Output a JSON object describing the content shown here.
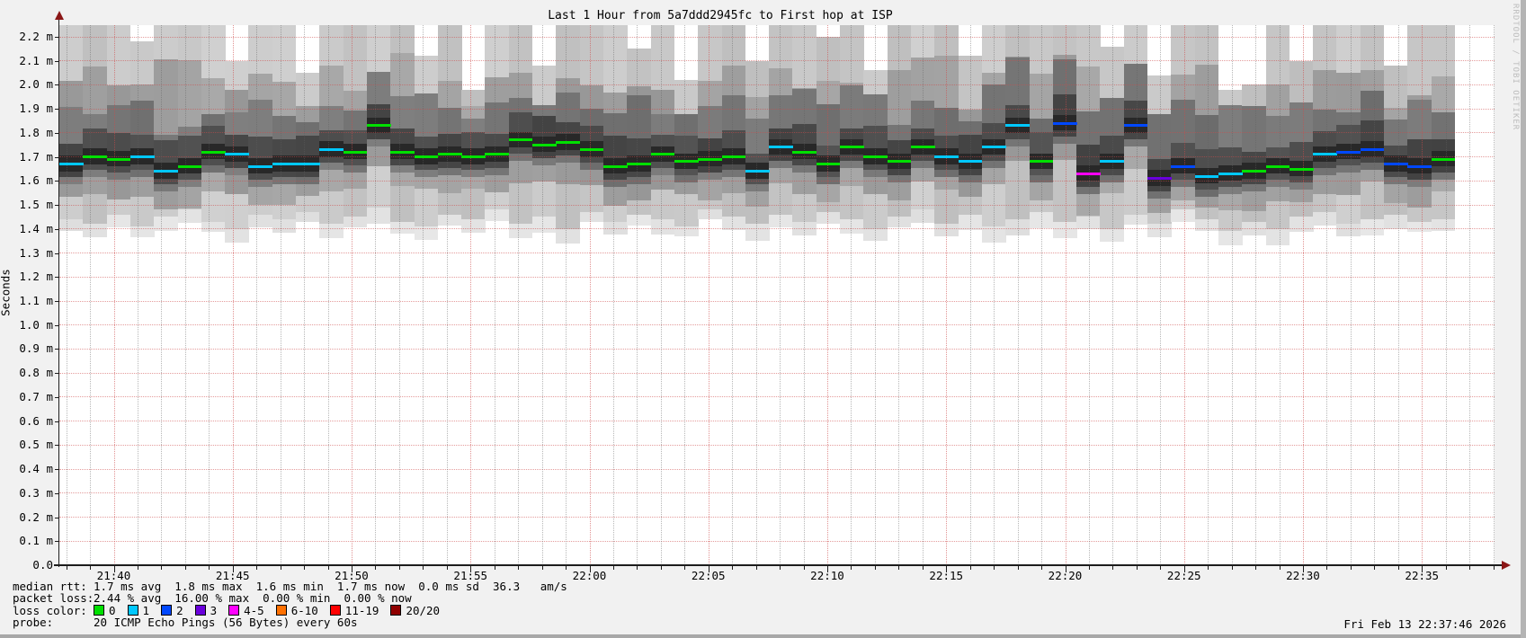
{
  "title": "Last 1 Hour from 5a7ddd2945fc to First hop at ISP",
  "ylabel": "Seconds",
  "watermark": "RRDTOOL / TOBI OETIKER",
  "datestamp": "Fri Feb 13 22:37:46 2026",
  "legend": {
    "median_label": "median rtt:",
    "median_value": "1.7 ms avg  1.8 ms max  1.6 ms min  1.7 ms now  0.0 ms sd  36.3   am/s",
    "loss_label": "packet loss:",
    "loss_value": "2.44 % avg  16.00 % max  0.00 % min  0.00 % now",
    "loss_color_label": "loss color:",
    "loss_colors": [
      {
        "label": "0",
        "color": "#00e000"
      },
      {
        "label": "1",
        "color": "#00c8ff"
      },
      {
        "label": "2",
        "color": "#0048ff"
      },
      {
        "label": "3",
        "color": "#6a00dc"
      },
      {
        "label": "4-5",
        "color": "#ff00ff"
      },
      {
        "label": "6-10",
        "color": "#ff7000"
      },
      {
        "label": "11-19",
        "color": "#ff0000"
      },
      {
        "label": "20/20",
        "color": "#900000"
      }
    ],
    "probe_label": "probe:",
    "probe_value": "20 ICMP Echo Pings (56 Bytes) every 60s"
  },
  "colors": {
    "g": "#00e000",
    "c": "#00c8ff",
    "b": "#0048ff",
    "p": "#6a00dc",
    "m": "#ff00ff",
    "axis_arrow": "#8b1717",
    "major_grid": "#cd4b4b"
  },
  "chart_data": {
    "type": "bar",
    "subtype": "smokeping-latency-smoke-graph",
    "title": "Last 1 Hour from 5a7ddd2945fc to First hop at ISP",
    "xlabel": "",
    "ylabel": "Seconds",
    "y_unit": "milliseconds (m)",
    "ylim": [
      0,
      2.25
    ],
    "grid": true,
    "legend_position": "bottom",
    "y_ticks": [
      "0.0",
      "0.1 m",
      "0.2 m",
      "0.3 m",
      "0.4 m",
      "0.5 m",
      "0.6 m",
      "0.7 m",
      "0.8 m",
      "0.9 m",
      "1.0 m",
      "1.1 m",
      "1.2 m",
      "1.3 m",
      "1.4 m",
      "1.5 m",
      "1.6 m",
      "1.7 m",
      "1.8 m",
      "1.9 m",
      "2.0 m",
      "2.1 m",
      "2.2 m"
    ],
    "x_ticks": [
      "21:40",
      "21:45",
      "21:50",
      "21:55",
      "22:00",
      "22:05",
      "22:10",
      "22:15",
      "22:20",
      "22:25",
      "22:30",
      "22:35"
    ],
    "median_color_by_loss": {
      "g": "0 lost",
      "c": "1 lost",
      "b": "2 lost",
      "p": "3 lost",
      "m": "4-5 lost"
    },
    "bars_format": [
      "time",
      "median_ms",
      "loss_color_key",
      "smoke_min_ms",
      "smoke_max_ms"
    ],
    "bars": [
      [
        "21:38",
        1.67,
        "c",
        1.44,
        2.25
      ],
      [
        "21:39",
        1.7,
        "g",
        1.42,
        2.25
      ],
      [
        "21:40",
        1.69,
        "g",
        1.46,
        2.25
      ],
      [
        "21:41",
        1.7,
        "c",
        1.41,
        2.18
      ],
      [
        "21:42",
        1.64,
        "c",
        1.45,
        2.25
      ],
      [
        "21:43",
        1.66,
        "g",
        1.48,
        2.25
      ],
      [
        "21:44",
        1.72,
        "g",
        1.43,
        2.25
      ],
      [
        "21:45",
        1.71,
        "c",
        1.4,
        2.1
      ],
      [
        "21:46",
        1.66,
        "c",
        1.46,
        2.25
      ],
      [
        "21:47",
        1.67,
        "c",
        1.44,
        2.25
      ],
      [
        "21:48",
        1.67,
        "c",
        1.47,
        2.05
      ],
      [
        "21:49",
        1.73,
        "c",
        1.42,
        2.25
      ],
      [
        "21:50",
        1.72,
        "g",
        1.45,
        2.25
      ],
      [
        "21:51",
        1.83,
        "g",
        1.49,
        2.25
      ],
      [
        "21:52",
        1.72,
        "g",
        1.43,
        2.25
      ],
      [
        "21:53",
        1.7,
        "g",
        1.41,
        2.12
      ],
      [
        "21:54",
        1.71,
        "g",
        1.46,
        2.25
      ],
      [
        "21:55",
        1.7,
        "g",
        1.44,
        1.98
      ],
      [
        "21:56",
        1.71,
        "g",
        1.48,
        2.25
      ],
      [
        "21:57",
        1.77,
        "g",
        1.42,
        2.25
      ],
      [
        "21:58",
        1.75,
        "g",
        1.45,
        2.08
      ],
      [
        "21:59",
        1.76,
        "g",
        1.4,
        2.25
      ],
      [
        "22:00",
        1.73,
        "g",
        1.47,
        2.25
      ],
      [
        "22:01",
        1.66,
        "g",
        1.43,
        2.25
      ],
      [
        "22:02",
        1.67,
        "g",
        1.46,
        2.15
      ],
      [
        "22:03",
        1.71,
        "g",
        1.44,
        2.25
      ],
      [
        "22:04",
        1.68,
        "g",
        1.41,
        2.02
      ],
      [
        "22:05",
        1.69,
        "g",
        1.48,
        2.25
      ],
      [
        "22:06",
        1.7,
        "g",
        1.45,
        2.25
      ],
      [
        "22:07",
        1.64,
        "c",
        1.42,
        2.1
      ],
      [
        "22:08",
        1.74,
        "c",
        1.46,
        2.25
      ],
      [
        "22:09",
        1.72,
        "g",
        1.43,
        2.25
      ],
      [
        "22:10",
        1.67,
        "g",
        1.47,
        2.2
      ],
      [
        "22:11",
        1.74,
        "g",
        1.44,
        2.25
      ],
      [
        "22:12",
        1.7,
        "g",
        1.4,
        2.06
      ],
      [
        "22:13",
        1.68,
        "g",
        1.45,
        2.25
      ],
      [
        "22:14",
        1.74,
        "g",
        1.48,
        2.25
      ],
      [
        "22:15",
        1.7,
        "c",
        1.42,
        2.25
      ],
      [
        "22:16",
        1.68,
        "c",
        1.46,
        2.12
      ],
      [
        "22:17",
        1.74,
        "c",
        1.41,
        2.25
      ],
      [
        "22:18",
        1.83,
        "c",
        1.44,
        2.25
      ],
      [
        "22:19",
        1.68,
        "g",
        1.47,
        2.25
      ],
      [
        "22:20",
        1.84,
        "b",
        1.43,
        2.25
      ],
      [
        "22:21",
        1.63,
        "m",
        1.45,
        2.25
      ],
      [
        "22:22",
        1.68,
        "c",
        1.4,
        2.16
      ],
      [
        "22:23",
        1.83,
        "b",
        1.46,
        2.25
      ],
      [
        "22:24",
        1.61,
        "p",
        1.42,
        2.04
      ],
      [
        "22:25",
        1.66,
        "b",
        1.48,
        2.25
      ],
      [
        "22:26",
        1.62,
        "c",
        1.44,
        2.25
      ],
      [
        "22:27",
        1.63,
        "c",
        1.39,
        1.98
      ],
      [
        "22:28",
        1.64,
        "g",
        1.43,
        2.0
      ],
      [
        "22:29",
        1.66,
        "g",
        1.4,
        2.25
      ],
      [
        "22:30",
        1.65,
        "g",
        1.45,
        2.1
      ],
      [
        "22:31",
        1.71,
        "c",
        1.47,
        2.25
      ],
      [
        "22:32",
        1.72,
        "b",
        1.42,
        2.25
      ],
      [
        "22:33",
        1.73,
        "b",
        1.44,
        2.25
      ],
      [
        "22:34",
        1.67,
        "b",
        1.46,
        2.08
      ],
      [
        "22:35",
        1.66,
        "b",
        1.43,
        2.25
      ],
      [
        "22:36",
        1.69,
        "g",
        1.44,
        2.25
      ]
    ]
  }
}
